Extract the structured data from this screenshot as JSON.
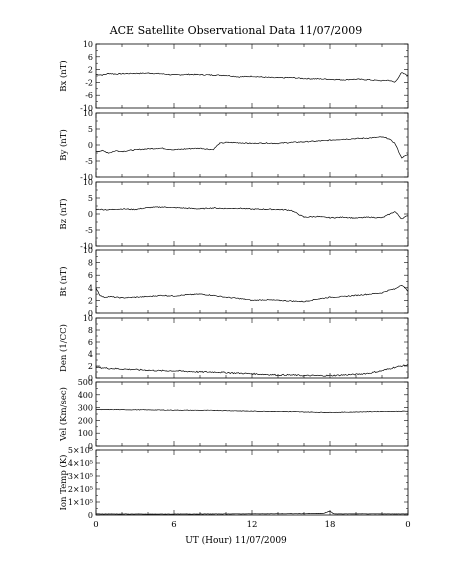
{
  "chart_data": {
    "type": "line",
    "title": "ACE Satellite Observational Data   11/07/2009",
    "xlabel": "UT (Hour)  11/07/2009",
    "x_ticks": [
      "0",
      "6",
      "12",
      "18",
      "0"
    ],
    "xlim": [
      0,
      24
    ],
    "panels": [
      {
        "id": "bx",
        "ylabel": "Bx (nT)",
        "ylim": [
          -10,
          10
        ],
        "y_ticks": [
          "10",
          "6",
          "2",
          "-2",
          "-6",
          "-10"
        ],
        "y_tick_values": [
          10,
          6,
          2,
          -2,
          -6,
          -10
        ],
        "x": [
          0,
          0.5,
          1,
          1.5,
          2,
          3,
          4,
          5,
          6,
          7,
          8,
          9,
          10,
          11,
          12,
          13,
          14,
          15,
          16,
          17,
          18,
          19,
          20,
          21,
          22,
          22.5,
          23,
          23.5,
          24
        ],
        "values": [
          0.5,
          0.3,
          0.8,
          0.6,
          0.7,
          0.8,
          0.9,
          0.7,
          0.3,
          0.5,
          0.4,
          0.3,
          0.2,
          -0.3,
          -0.1,
          -0.4,
          -0.6,
          -0.5,
          -0.8,
          -0.9,
          -1.0,
          -1.2,
          -1.0,
          -1.2,
          -1.5,
          -1.3,
          -2.0,
          1.0,
          0.2
        ]
      },
      {
        "id": "by",
        "ylabel": "By (nT)",
        "ylim": [
          -10,
          10
        ],
        "y_ticks": [
          "10",
          "5",
          "0",
          "-5",
          "-10"
        ],
        "y_tick_values": [
          10,
          5,
          0,
          -5,
          -10
        ],
        "x": [
          0,
          0.5,
          1,
          1.5,
          2,
          3,
          4,
          5,
          6,
          7,
          8,
          9,
          9.5,
          10,
          11,
          12,
          13,
          14,
          15,
          16,
          17,
          18,
          19,
          20,
          21,
          22,
          22.5,
          23,
          23.5,
          24
        ],
        "values": [
          -2.0,
          -1.8,
          -2.5,
          -1.8,
          -2.0,
          -1.5,
          -1.2,
          -1.0,
          -1.5,
          -1.2,
          -1.0,
          -1.5,
          0.5,
          0.8,
          0.7,
          0.5,
          0.6,
          0.5,
          0.8,
          1.0,
          1.2,
          1.5,
          1.8,
          2.0,
          2.2,
          2.5,
          2.0,
          0.5,
          -4.0,
          -3.0
        ]
      },
      {
        "id": "bz",
        "ylabel": "Bz (nT)",
        "ylim": [
          -10,
          10
        ],
        "y_ticks": [
          "10",
          "5",
          "0",
          "-5",
          "-10"
        ],
        "y_tick_values": [
          10,
          5,
          0,
          -5,
          -10
        ],
        "x": [
          0,
          1,
          2,
          3,
          4,
          5,
          6,
          7,
          8,
          9,
          10,
          11,
          12,
          13,
          14,
          15,
          16,
          17,
          18,
          19,
          20,
          21,
          22,
          23,
          23.5,
          24
        ],
        "values": [
          1.5,
          1.3,
          1.6,
          1.4,
          2.0,
          2.2,
          2.0,
          1.8,
          1.6,
          1.9,
          1.7,
          1.8,
          1.5,
          1.5,
          1.4,
          1.2,
          -1.0,
          -0.8,
          -1.2,
          -1.0,
          -1.3,
          -1.0,
          -1.2,
          0.8,
          -1.5,
          -0.5
        ]
      },
      {
        "id": "bt",
        "ylabel": "Bt (nT)",
        "ylim": [
          0,
          10
        ],
        "y_ticks": [
          "10",
          "8",
          "6",
          "4",
          "2",
          "0"
        ],
        "y_tick_values": [
          10,
          8,
          6,
          4,
          2,
          0
        ],
        "x": [
          0,
          0.3,
          0.6,
          1,
          2,
          3,
          4,
          5,
          6,
          7,
          8,
          9,
          10,
          11,
          12,
          13,
          14,
          15,
          16,
          17,
          18,
          19,
          20,
          21,
          22,
          22.5,
          23,
          23.5,
          24
        ],
        "values": [
          4.0,
          2.8,
          2.5,
          2.6,
          2.4,
          2.5,
          2.6,
          2.8,
          2.7,
          2.9,
          3.0,
          2.8,
          2.5,
          2.3,
          2.0,
          2.1,
          2.0,
          1.9,
          1.8,
          2.2,
          2.5,
          2.6,
          2.8,
          3.0,
          3.2,
          3.6,
          3.8,
          4.5,
          3.5
        ]
      },
      {
        "id": "den",
        "ylabel": "Den (1/CC)",
        "ylim": [
          0,
          10
        ],
        "y_ticks": [
          "10",
          "8",
          "6",
          "4",
          "2",
          "0"
        ],
        "y_tick_values": [
          10,
          8,
          6,
          4,
          2,
          0
        ],
        "x": [
          0,
          1,
          2,
          3,
          4,
          5,
          6,
          7,
          8,
          9,
          10,
          11,
          12,
          13,
          14,
          15,
          16,
          17,
          18,
          19,
          20,
          21,
          22,
          23,
          24
        ],
        "values": [
          1.8,
          1.6,
          1.5,
          1.4,
          1.3,
          1.2,
          1.2,
          1.1,
          1.0,
          1.0,
          0.9,
          0.8,
          0.7,
          0.6,
          0.5,
          0.5,
          0.4,
          0.4,
          0.4,
          0.5,
          0.6,
          0.8,
          1.2,
          1.8,
          2.2
        ]
      },
      {
        "id": "vel",
        "ylabel": "Vel (Km/sec)",
        "ylim": [
          0,
          500
        ],
        "y_ticks": [
          "500",
          "400",
          "300",
          "200",
          "100",
          "0"
        ],
        "y_tick_values": [
          500,
          400,
          300,
          200,
          100,
          0
        ],
        "x": [
          0,
          3,
          6,
          9,
          12,
          15,
          18,
          21,
          24
        ],
        "values": [
          285,
          283,
          280,
          278,
          272,
          268,
          262,
          268,
          272
        ]
      },
      {
        "id": "temp",
        "ylabel": "Ion Temp (K)",
        "ylim": [
          0,
          500000
        ],
        "y_ticks": [
          "5×10⁵",
          "4×10⁵",
          "3×10⁵",
          "2×10⁵",
          "1×10⁵",
          "0"
        ],
        "y_tick_values": [
          500000,
          400000,
          300000,
          200000,
          100000,
          0
        ],
        "x": [
          0,
          4,
          8,
          12,
          16,
          17.5,
          18,
          18.3,
          20,
          24
        ],
        "values": [
          8000,
          7000,
          7500,
          9000,
          10000,
          12000,
          30000,
          8000,
          9000,
          8000
        ]
      }
    ]
  }
}
